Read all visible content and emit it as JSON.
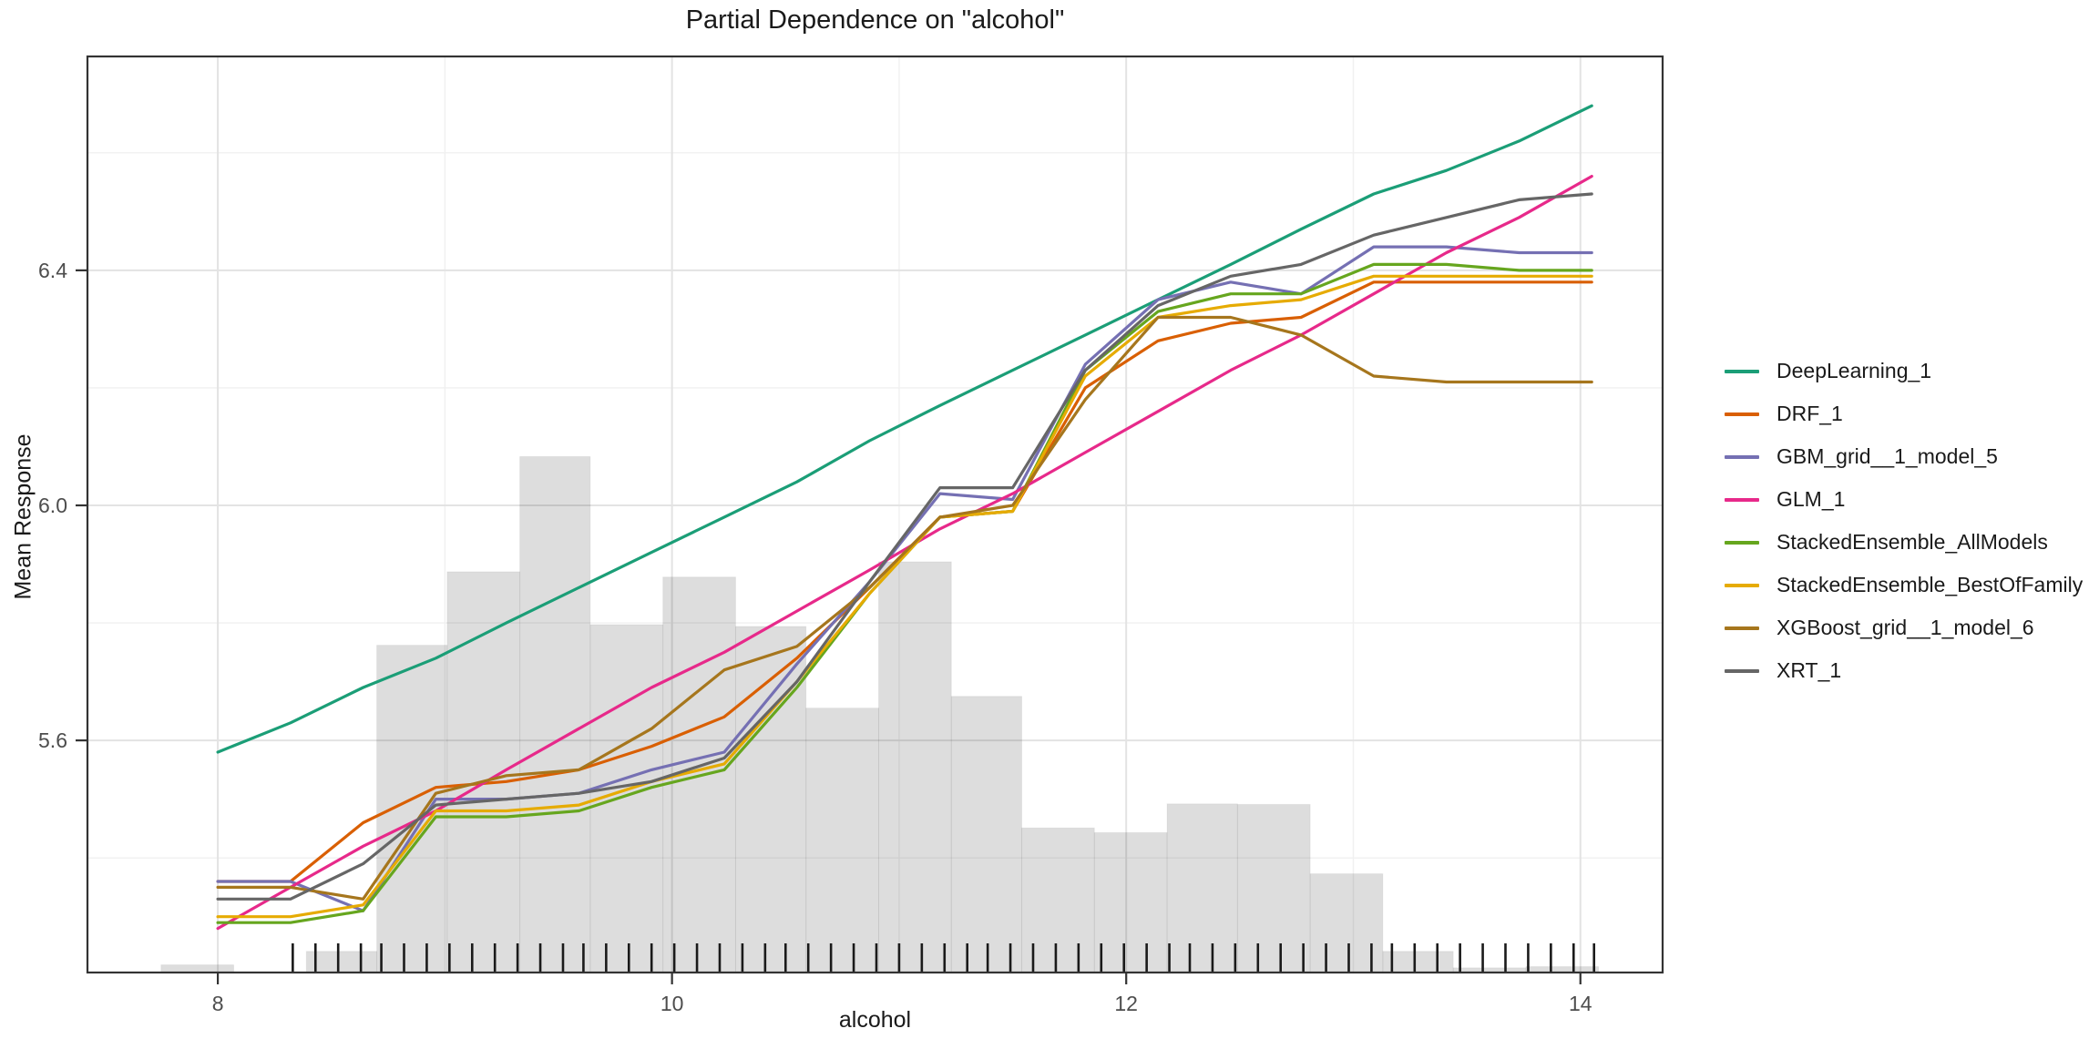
{
  "title": "Partial Dependence on \"alcohol\"",
  "axes": {
    "x_title": "alcohol",
    "y_title": "Mean Response",
    "x_tick_labels": [
      "8",
      "10",
      "12",
      "14"
    ],
    "y_tick_labels": [
      "5.6",
      "6.0",
      "6.4"
    ]
  },
  "colors": {
    "deeplearning": "#1b9e77",
    "drf": "#d95f02",
    "gbm": "#7570b3",
    "glm": "#e7298a",
    "se_allmodels": "#66a61e",
    "se_bestoffamily": "#e6ab02",
    "xgboost": "#a6761d",
    "xrt": "#666666",
    "grid_major": "#e3e3e3",
    "grid_minor": "#f0f0f0",
    "panel_border": "#333333",
    "tick_label": "#4d4d4d",
    "histogram_fill": "rgba(0,0,0,0.135)",
    "histogram_edge": "rgba(0,0,0,0.05)",
    "rug": "#1a1a1a"
  },
  "legend": {
    "items": [
      {
        "label": "DeepLearning_1",
        "color": "#1b9e77"
      },
      {
        "label": "DRF_1",
        "color": "#d95f02"
      },
      {
        "label": "GBM_grid__1_model_5",
        "color": "#7570b3"
      },
      {
        "label": "GLM_1",
        "color": "#e7298a"
      },
      {
        "label": "StackedEnsemble_AllModels",
        "color": "#66a61e"
      },
      {
        "label": "StackedEnsemble_BestOfFamily",
        "color": "#e6ab02"
      },
      {
        "label": "XGBoost_grid__1_model_6",
        "color": "#a6761d"
      },
      {
        "label": "XRT_1",
        "color": "#666666"
      }
    ]
  },
  "chart_data": {
    "type": "line",
    "title": "Partial Dependence on \"alcohol\"",
    "xlabel": "alcohol",
    "ylabel": "Mean Response",
    "xlim": [
      7.426,
      14.362
    ],
    "ylim": [
      5.205,
      6.764
    ],
    "x_major_ticks": [
      8,
      10,
      12,
      14
    ],
    "x_minor_ticks": [
      9,
      11,
      13
    ],
    "y_major_ticks": [
      5.6,
      6.0,
      6.4
    ],
    "y_minor_ticks": [
      5.4,
      5.8,
      6.2,
      6.6
    ],
    "grid": true,
    "legend_position": "right",
    "x": [
      8.0,
      8.32,
      8.64,
      8.96,
      9.27,
      9.59,
      9.91,
      10.23,
      10.55,
      10.87,
      11.18,
      11.5,
      11.82,
      12.14,
      12.46,
      12.77,
      13.09,
      13.41,
      13.73,
      14.05
    ],
    "series": [
      {
        "name": "DeepLearning_1",
        "color": "#1b9e77",
        "values": [
          5.58,
          5.63,
          5.69,
          5.74,
          5.8,
          5.86,
          5.92,
          5.98,
          6.04,
          6.11,
          6.17,
          6.23,
          6.29,
          6.35,
          6.41,
          6.47,
          6.53,
          6.57,
          6.62,
          6.68
        ]
      },
      {
        "name": "DRF_1",
        "color": "#d95f02",
        "values": [
          5.36,
          5.36,
          5.46,
          5.52,
          5.53,
          5.55,
          5.59,
          5.64,
          5.74,
          5.86,
          5.98,
          5.99,
          6.2,
          6.28,
          6.31,
          6.32,
          6.38,
          6.38,
          6.38,
          6.38
        ]
      },
      {
        "name": "GBM_grid__1_model_5",
        "color": "#7570b3",
        "values": [
          5.36,
          5.36,
          5.31,
          5.5,
          5.5,
          5.51,
          5.55,
          5.58,
          5.73,
          5.87,
          6.02,
          6.01,
          6.24,
          6.35,
          6.38,
          6.36,
          6.44,
          6.44,
          6.43,
          6.43
        ]
      },
      {
        "name": "GLM_1",
        "color": "#e7298a",
        "values": [
          5.28,
          5.35,
          5.42,
          5.48,
          5.55,
          5.62,
          5.69,
          5.75,
          5.82,
          5.89,
          5.96,
          6.02,
          6.09,
          6.16,
          6.23,
          6.29,
          6.36,
          6.43,
          6.49,
          6.56
        ]
      },
      {
        "name": "StackedEnsemble_AllModels",
        "color": "#66a61e",
        "values": [
          5.29,
          5.29,
          5.31,
          5.47,
          5.47,
          5.48,
          5.52,
          5.55,
          5.69,
          5.85,
          5.98,
          5.99,
          6.23,
          6.33,
          6.36,
          6.36,
          6.41,
          6.41,
          6.4,
          6.4
        ]
      },
      {
        "name": "StackedEnsemble_BestOfFamily",
        "color": "#e6ab02",
        "values": [
          5.3,
          5.3,
          5.32,
          5.48,
          5.48,
          5.49,
          5.53,
          5.56,
          5.7,
          5.85,
          5.98,
          5.99,
          6.22,
          6.32,
          6.34,
          6.35,
          6.39,
          6.39,
          6.39,
          6.39
        ]
      },
      {
        "name": "XGBoost_grid__1_model_6",
        "color": "#a6761d",
        "values": [
          5.35,
          5.35,
          5.33,
          5.51,
          5.54,
          5.55,
          5.62,
          5.72,
          5.76,
          5.86,
          5.98,
          6.0,
          6.18,
          6.32,
          6.32,
          6.29,
          6.22,
          6.21,
          6.21,
          6.21
        ]
      },
      {
        "name": "XRT_1",
        "color": "#666666",
        "values": [
          5.33,
          5.33,
          5.39,
          5.49,
          5.5,
          5.51,
          5.53,
          5.57,
          5.7,
          5.87,
          6.03,
          6.03,
          6.23,
          6.34,
          6.39,
          6.41,
          6.46,
          6.49,
          6.52,
          6.53
        ]
      }
    ],
    "histogram": {
      "fill_note": "light gray frequency bars behind lines",
      "bars": [
        {
          "x0": 7.75,
          "x1": 8.07,
          "top": 5.218
        },
        {
          "x0": 8.39,
          "x1": 8.7,
          "top": 5.241
        },
        {
          "x0": 8.7,
          "x1": 9.01,
          "top": 5.762
        },
        {
          "x0": 9.01,
          "x1": 9.33,
          "top": 5.887
        },
        {
          "x0": 9.33,
          "x1": 9.64,
          "top": 6.083
        },
        {
          "x0": 9.64,
          "x1": 9.96,
          "top": 5.797
        },
        {
          "x0": 9.96,
          "x1": 10.28,
          "top": 5.878
        },
        {
          "x0": 10.28,
          "x1": 10.59,
          "top": 5.794
        },
        {
          "x0": 10.59,
          "x1": 10.91,
          "top": 5.655
        },
        {
          "x0": 10.91,
          "x1": 11.23,
          "top": 5.904
        },
        {
          "x0": 11.23,
          "x1": 11.54,
          "top": 5.675
        },
        {
          "x0": 11.54,
          "x1": 11.86,
          "top": 5.451
        },
        {
          "x0": 11.86,
          "x1": 12.18,
          "top": 5.443
        },
        {
          "x0": 12.18,
          "x1": 12.49,
          "top": 5.492
        },
        {
          "x0": 12.49,
          "x1": 12.81,
          "top": 5.491
        },
        {
          "x0": 12.81,
          "x1": 13.13,
          "top": 5.373
        },
        {
          "x0": 13.13,
          "x1": 13.44,
          "top": 5.241
        },
        {
          "x0": 13.44,
          "x1": 13.76,
          "top": 5.213
        },
        {
          "x0": 13.76,
          "x1": 14.08,
          "top": 5.215
        }
      ]
    },
    "rug": [
      8.33,
      8.43,
      8.53,
      8.63,
      8.72,
      8.82,
      8.92,
      9.02,
      9.12,
      9.22,
      9.32,
      9.42,
      9.52,
      9.61,
      9.71,
      9.81,
      9.91,
      10.01,
      10.11,
      10.21,
      10.31,
      10.41,
      10.5,
      10.6,
      10.7,
      10.8,
      10.9,
      11.0,
      11.1,
      11.2,
      11.3,
      11.39,
      11.49,
      11.59,
      11.69,
      11.79,
      11.89,
      11.99,
      12.09,
      12.19,
      12.28,
      12.38,
      12.48,
      12.58,
      12.68,
      12.78,
      12.88,
      12.98,
      13.08,
      13.17,
      13.27,
      13.37,
      13.47,
      13.57,
      13.67,
      13.77,
      13.87,
      13.97,
      14.06
    ]
  }
}
